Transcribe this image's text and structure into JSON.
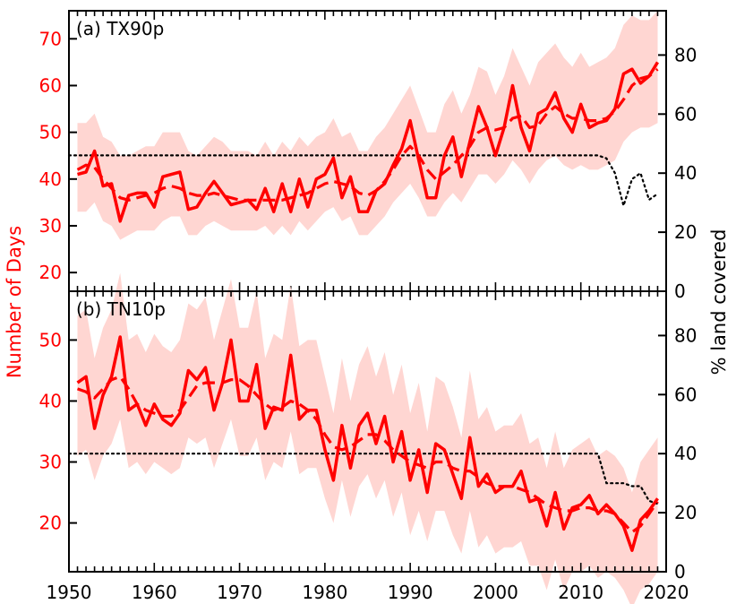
{
  "chart_data": {
    "type": "line",
    "colors": {
      "series": "#ff0000",
      "band": "#ffd6d2",
      "coverage": "#000000",
      "axis": "#000000"
    },
    "ylabel_left": "Number of Days",
    "ylabel_right": "% land covered",
    "x_ticks": [
      "1950",
      "1960",
      "1970",
      "1980",
      "1990",
      "2000",
      "2010",
      "2020"
    ],
    "xlim": [
      1950,
      2020
    ],
    "panels": [
      {
        "label": "(a) TX90p",
        "ylim_left": [
          16,
          76
        ],
        "ylim_right": [
          0,
          95
        ],
        "left_ticks": [
          "20",
          "30",
          "40",
          "50",
          "60",
          "70"
        ],
        "right_ticks": [
          "0",
          "20",
          "40",
          "60",
          "80"
        ],
        "x": [
          1951,
          1952,
          1953,
          1954,
          1955,
          1956,
          1957,
          1958,
          1959,
          1960,
          1961,
          1962,
          1963,
          1964,
          1965,
          1966,
          1967,
          1968,
          1969,
          1970,
          1971,
          1972,
          1973,
          1974,
          1975,
          1976,
          1977,
          1978,
          1979,
          1980,
          1981,
          1982,
          1983,
          1984,
          1985,
          1986,
          1987,
          1988,
          1989,
          1990,
          1991,
          1992,
          1993,
          1994,
          1995,
          1996,
          1997,
          1998,
          1999,
          2000,
          2001,
          2002,
          2003,
          2004,
          2005,
          2006,
          2007,
          2008,
          2009,
          2010,
          2011,
          2012,
          2013,
          2014,
          2015,
          2016,
          2017,
          2018,
          2019
        ],
        "series": [
          {
            "name": "annual",
            "style": "solid",
            "values": [
              41,
              41.5,
              46,
              38.5,
              39,
              31,
              36.5,
              37,
              37,
              34,
              40.5,
              41,
              41.5,
              33.5,
              34,
              37,
              39.5,
              37,
              34.5,
              35,
              35.5,
              33.5,
              38,
              33,
              39,
              33,
              40,
              34,
              40,
              41,
              44.5,
              36,
              40.5,
              33,
              33,
              37.5,
              39,
              43,
              46.5,
              52.5,
              44,
              36,
              36,
              45,
              49,
              40.5,
              48,
              55.5,
              51,
              45,
              51,
              60,
              51,
              46,
              54,
              55,
              58.5,
              53,
              50,
              56,
              51,
              52,
              52.5,
              55,
              62.5,
              63.5,
              60.5,
              62,
              65
            ]
          },
          {
            "name": "smoothed",
            "style": "dashed",
            "values": [
              42,
              43,
              42.5,
              40,
              38,
              36,
              35.5,
              36,
              36.5,
              37,
              38,
              38.5,
              38,
              37,
              36.5,
              36.5,
              37,
              36.5,
              36,
              35.5,
              35.5,
              35.5,
              35.5,
              35.5,
              35.5,
              36,
              36.5,
              37,
              38,
              39,
              39.5,
              39,
              38.5,
              37,
              36.5,
              37.5,
              39.5,
              42,
              45,
              47,
              45,
              42,
              40,
              41.5,
              43,
              45,
              47,
              50,
              51,
              50.5,
              51,
              53,
              53.5,
              51,
              51.5,
              54,
              55.5,
              54,
              53,
              53,
              52.5,
              52.5,
              53,
              54.5,
              57,
              60,
              61.5,
              62,
              63.5
            ]
          }
        ],
        "band_low": [
          33,
          33,
          35,
          31,
          30,
          27,
          28,
          29,
          29,
          29,
          31,
          32,
          32,
          28,
          28,
          30,
          31,
          30,
          29,
          29,
          29,
          29,
          30,
          28,
          30,
          28,
          31,
          29,
          31,
          33,
          34,
          31,
          32,
          28,
          28,
          30,
          32,
          35,
          37,
          39,
          36,
          32,
          32,
          35,
          37,
          35,
          38,
          41,
          41,
          39,
          41,
          44,
          42,
          39,
          42,
          44,
          45,
          43,
          42,
          43,
          42,
          42,
          43,
          44,
          48,
          50,
          51,
          51,
          52
        ],
        "band_high": [
          52,
          52,
          54,
          49,
          48,
          45,
          45,
          46,
          47,
          47,
          50,
          50,
          50,
          46,
          45,
          47,
          49,
          48,
          46,
          46,
          46,
          45,
          48,
          45,
          48,
          46,
          49,
          47,
          49,
          50,
          53,
          49,
          50,
          46,
          46,
          49,
          51,
          54,
          57,
          60,
          55,
          50,
          50,
          56,
          59,
          54,
          58,
          64,
          63,
          58,
          62,
          68,
          64,
          60,
          65,
          67,
          69,
          66,
          64,
          67,
          64,
          65,
          66,
          68,
          73,
          75,
          74,
          74,
          76
        ],
        "coverage": [
          46,
          46,
          46,
          46,
          46,
          46,
          46,
          46,
          46,
          46,
          46,
          46,
          46,
          46,
          46,
          46,
          46,
          46,
          46,
          46,
          46,
          46,
          46,
          46,
          46,
          46,
          46,
          46,
          46,
          46,
          46,
          46,
          46,
          46,
          46,
          46,
          46,
          46,
          46,
          46,
          46,
          46,
          46,
          46,
          46,
          46,
          46,
          46,
          46,
          46,
          46,
          46,
          46,
          46,
          46,
          46,
          46,
          46,
          46,
          46,
          46,
          46,
          46,
          45,
          40,
          29,
          38,
          40,
          31,
          33
        ]
      },
      {
        "label": "(b) TN10p",
        "ylim_left": [
          12,
          58
        ],
        "ylim_right": [
          0,
          95
        ],
        "left_ticks": [
          "20",
          "30",
          "40",
          "50"
        ],
        "right_ticks": [
          "0",
          "20",
          "40",
          "60",
          "80"
        ],
        "x": [
          1951,
          1952,
          1953,
          1954,
          1955,
          1956,
          1957,
          1958,
          1959,
          1960,
          1961,
          1962,
          1963,
          1964,
          1965,
          1966,
          1967,
          1968,
          1969,
          1970,
          1971,
          1972,
          1973,
          1974,
          1975,
          1976,
          1977,
          1978,
          1979,
          1980,
          1981,
          1982,
          1983,
          1984,
          1985,
          1986,
          1987,
          1988,
          1989,
          1990,
          1991,
          1992,
          1993,
          1994,
          1995,
          1996,
          1997,
          1998,
          1999,
          2000,
          2001,
          2002,
          2003,
          2004,
          2005,
          2006,
          2007,
          2008,
          2009,
          2010,
          2011,
          2012,
          2013,
          2014,
          2015,
          2016,
          2017,
          2018,
          2019
        ],
        "series": [
          {
            "name": "annual",
            "style": "solid",
            "values": [
              43,
              44,
              35.5,
              41,
              44,
              50.5,
              38.5,
              39.5,
              36,
              39.5,
              37,
              36,
              38,
              45,
              43.5,
              45.5,
              38.5,
              43,
              50,
              40,
              40,
              46,
              35.5,
              39,
              38.5,
              47.5,
              37,
              38.5,
              38.5,
              32,
              27,
              36,
              29,
              36,
              38,
              33,
              37.5,
              30,
              35,
              27,
              32,
              25,
              33,
              32,
              28,
              24,
              34,
              26,
              28,
              25,
              26,
              26,
              28.5,
              23.5,
              24,
              19.5,
              25,
              19,
              22.5,
              23,
              24.5,
              21.5,
              23,
              21.5,
              19.5,
              15.5,
              20.5,
              22,
              24
            ]
          },
          {
            "name": "smoothed",
            "style": "dashed",
            "values": [
              42,
              41.5,
              40.5,
              42,
              43.5,
              44,
              42,
              39.5,
              38.5,
              38,
              37.5,
              37.5,
              38.5,
              40.5,
              42.5,
              43,
              43,
              43,
              43.5,
              43.5,
              42.5,
              41,
              39.5,
              38.5,
              39,
              40,
              39.5,
              38.5,
              37,
              34.5,
              32.5,
              32,
              32.5,
              33.5,
              34.5,
              34.5,
              33.5,
              32,
              31,
              30,
              29.5,
              29,
              30,
              30,
              29,
              28.5,
              28.5,
              27.5,
              26.5,
              26,
              26,
              26,
              25.5,
              25,
              24,
              23,
              22.5,
              22,
              22,
              22.5,
              22.5,
              22,
              22,
              21.5,
              20,
              18.5,
              19.5,
              21.5,
              23.5
            ]
          }
        ],
        "band_low": [
          31,
          32,
          27,
          31,
          33,
          37,
          29,
          30,
          28,
          30,
          29,
          28,
          29,
          34,
          33,
          34,
          29,
          33,
          37,
          31,
          31,
          34,
          27,
          30,
          29,
          35,
          28,
          29,
          29,
          24,
          20,
          27,
          21,
          26,
          28,
          24,
          27,
          21,
          25,
          18,
          22,
          17,
          22,
          22,
          18,
          15,
          22,
          16,
          18,
          15,
          16,
          16,
          17,
          13,
          13,
          9,
          14,
          9,
          12,
          12,
          13,
          11,
          12,
          11,
          9,
          6,
          9,
          10,
          12
        ],
        "band_high": [
          54,
          55,
          47,
          52,
          55,
          61,
          50,
          51,
          48,
          51,
          49,
          48,
          50,
          56,
          55,
          57,
          50,
          55,
          60,
          52,
          52,
          58,
          47,
          51,
          50,
          59,
          49,
          50,
          50,
          44,
          38,
          47,
          40,
          46,
          49,
          44,
          48,
          41,
          46,
          38,
          43,
          35,
          44,
          43,
          39,
          34,
          45,
          37,
          39,
          35,
          36,
          36,
          38,
          33,
          34,
          29,
          35,
          29,
          32,
          33,
          34,
          31,
          32,
          31,
          29,
          25,
          30,
          32,
          34
        ],
        "coverage": [
          40,
          40,
          40,
          40,
          40,
          40,
          40,
          40,
          40,
          40,
          40,
          40,
          40,
          40,
          40,
          40,
          40,
          40,
          40,
          40,
          40,
          40,
          40,
          40,
          40,
          40,
          40,
          40,
          40,
          40,
          40,
          40,
          40,
          40,
          40,
          40,
          40,
          40,
          40,
          40,
          40,
          40,
          40,
          40,
          40,
          40,
          40,
          40,
          40,
          40,
          40,
          40,
          40,
          40,
          40,
          40,
          40,
          40,
          40,
          40,
          40,
          40,
          40,
          30,
          30,
          30,
          29,
          29,
          24,
          23
        ]
      }
    ]
  }
}
